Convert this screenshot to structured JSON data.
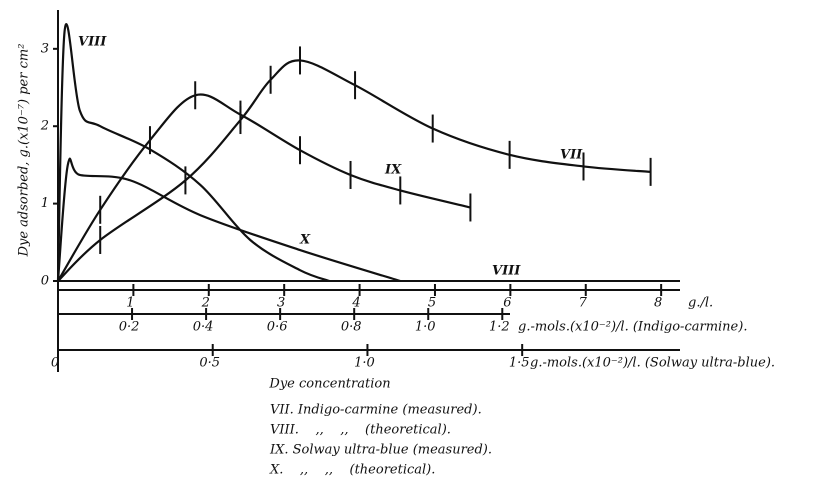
{
  "chart_data": {
    "type": "line",
    "ylabel": "Dye adsorbed, g.(x10⁻⁷) per cm²",
    "xlabel": "Dye concentration",
    "ylim": [
      0,
      3.45
    ],
    "yticks": [
      0,
      1,
      2,
      3
    ],
    "xlim": [
      0,
      8.25
    ],
    "xticks": [
      1,
      2,
      3,
      4,
      5,
      6,
      7,
      8
    ],
    "x_unit": "g./l.",
    "x2lim": [
      0,
      1.68
    ],
    "x2ticks": [
      {
        "value": 0.2,
        "label": "0·2"
      },
      {
        "value": 0.4,
        "label": "0·4"
      },
      {
        "value": 0.6,
        "label": "0·6"
      },
      {
        "value": 0.8,
        "label": "0·8"
      },
      {
        "value": 1.0,
        "label": "1·0"
      },
      {
        "value": 1.2,
        "label": "1·2"
      }
    ],
    "x2_unit": "g.-mols.(x10⁻²)/l. (Indigo-carmine).",
    "x3lim": [
      0,
      2.01
    ],
    "x3ticks": [
      0,
      {
        "value": 0.5,
        "label": "0·5"
      },
      {
        "value": 1.0,
        "label": "1·0"
      },
      {
        "value": 1.5,
        "label": "1·5"
      }
    ],
    "x3_unit": "g.-mols.(x10⁻²)/l. (Solway ultra-blue).",
    "series": [
      {
        "name": "VII",
        "color": "#111",
        "x": [
          0,
          0.56,
          1.69,
          2.42,
          2.82,
          3.21,
          3.94,
          4.97,
          5.99,
          6.97,
          7.86
        ],
        "values": [
          0,
          0.53,
          1.3,
          2.08,
          2.6,
          2.85,
          2.53,
          1.97,
          1.63,
          1.48,
          1.41
        ]
      },
      {
        "name": "VIII",
        "color": "#111",
        "x": [
          0,
          0.09,
          0.29,
          0.56,
          1.22,
          1.89,
          2.55,
          3.21,
          3.6
        ],
        "values": [
          0,
          3.25,
          2.2,
          2.0,
          1.7,
          1.24,
          0.53,
          0.14,
          0
        ]
      },
      {
        "name": "IX",
        "color": "#111",
        "x": [
          0,
          0.56,
          1.22,
          1.82,
          2.42,
          3.21,
          3.88,
          4.54,
          5.47
        ],
        "values": [
          0,
          0.92,
          1.82,
          2.4,
          2.15,
          1.69,
          1.37,
          1.17,
          0.95
        ]
      },
      {
        "name": "X",
        "color": "#111",
        "x": [
          0,
          0.13,
          0.29,
          0.96,
          1.89,
          3.21,
          4.54
        ],
        "values": [
          0,
          1.5,
          1.37,
          1.3,
          0.85,
          0.4,
          0
        ]
      }
    ],
    "annotations": [
      "VIII"
    ],
    "caption": [
      "VII. Indigo-carmine (measured).",
      "VIII.    ,,    ,,    (theoretical).",
      "IX. Solway ultra-blue (measured).",
      "X.    ,,    ,,    (theoretical)."
    ]
  }
}
